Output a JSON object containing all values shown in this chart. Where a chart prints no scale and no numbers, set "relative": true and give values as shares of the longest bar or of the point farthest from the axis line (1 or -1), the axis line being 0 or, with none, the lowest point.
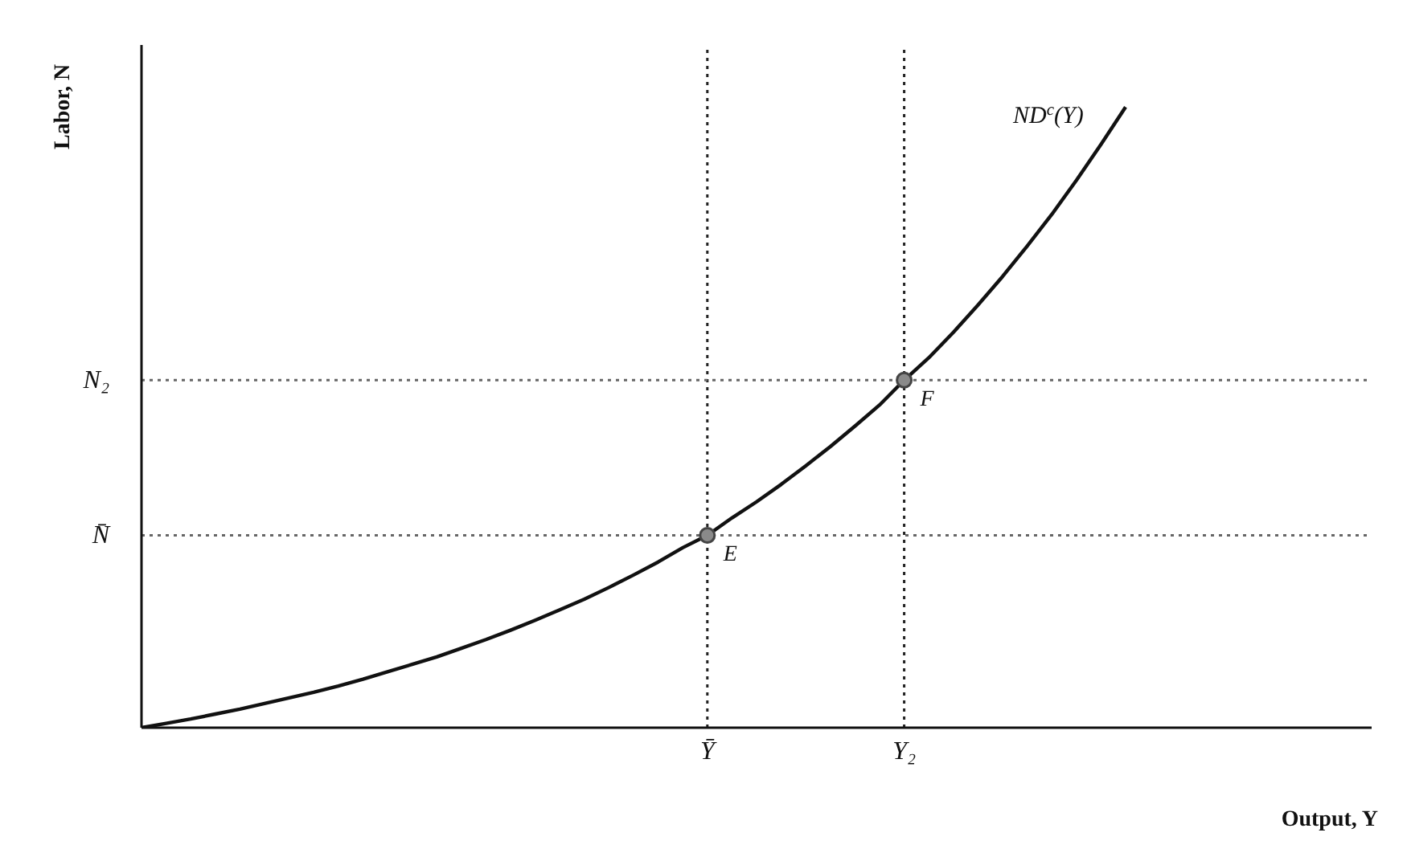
{
  "chart_data": {
    "type": "line",
    "relative": true,
    "xlabel": "Output, Y",
    "ylabel": "Labor, N",
    "grid": false,
    "legend": false,
    "categories": [
      null,
      null,
      null,
      null,
      null,
      null,
      null,
      null,
      null,
      null,
      null,
      null,
      null,
      null,
      null,
      null,
      null,
      null,
      null,
      null,
      null,
      null,
      null,
      "Ȳ",
      null,
      null,
      null,
      null,
      null,
      null,
      null,
      "Y₂",
      null,
      null,
      null,
      null,
      null,
      null,
      null,
      null,
      null,
      null,
      null,
      null,
      null,
      null,
      null,
      null,
      null,
      null,
      null
    ],
    "series": [
      {
        "name": "ND$^{c}$(Y)",
        "color": "#111111",
        "marker": "none",
        "line_style": "solid",
        "values": [
          0,
          0.007,
          0.014,
          0.022,
          0.03,
          0.039,
          0.048,
          0.057,
          0.067,
          0.078,
          0.09,
          0.102,
          0.114,
          0.128,
          0.142,
          0.157,
          0.173,
          0.19,
          0.207,
          0.226,
          0.246,
          0.267,
          0.29,
          0.31,
          0.338,
          0.364,
          0.392,
          0.422,
          0.453,
          0.486,
          0.52,
          0.56,
          0.596,
          0.637,
          0.681,
          0.727,
          0.776,
          0.827,
          0.882,
          0.94,
          1,
          null,
          null,
          null,
          null,
          null,
          null,
          null,
          null,
          null,
          null
        ]
      },
      {
        "type": "scatter",
        "color": "#8a8a8a",
        "marker": "circle",
        "x": [
          "Ȳ",
          "Y₂"
        ],
        "values": [
          0.31,
          0.56
        ]
      }
    ],
    "ref_lines": [
      {
        "axis": "x",
        "value": "Ȳ",
        "line_style": "dotted",
        "color": "#222222"
      },
      {
        "axis": "x",
        "value": "Y₂",
        "line_style": "dotted",
        "color": "#222222"
      },
      {
        "axis": "y",
        "value": 0.31,
        "label": "N̄",
        "line_style": "dotted",
        "color": "#666666"
      },
      {
        "axis": "y",
        "value": 0.56,
        "label": "N₂",
        "line_style": "dotted",
        "color": "#666666"
      }
    ],
    "annotations": [
      {
        "text": "E",
        "x": "Ȳ",
        "y": 0.31
      },
      {
        "text": "F",
        "x": "Y₂",
        "y": 0.56
      }
    ]
  }
}
